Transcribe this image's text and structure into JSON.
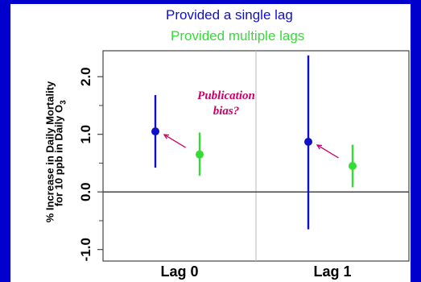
{
  "colors": {
    "background": "#0000CC",
    "panel": "#FFFFFF",
    "single_lag": "#1010C8",
    "multiple_lags": "#33DD33",
    "annotation": "#CC0066",
    "axis": "#444444",
    "divider": "#BBBBBB"
  },
  "legend": {
    "single_label": "Provided a single lag",
    "multiple_label": "Provided multiple lags"
  },
  "annotation": {
    "line1": "Publication",
    "line2": "bias?"
  },
  "chart_data": {
    "type": "scatter",
    "title": "",
    "xlabel": "",
    "ylabel_line1": "% Increase in Daily Mortality",
    "ylabel_line2": "for 10 ppb in Daily O",
    "ylabel_subscript": "3",
    "categories": [
      "Lag 0",
      "Lag 1"
    ],
    "ylim": [
      -1.2,
      2.45
    ],
    "yticks": [
      {
        "value": -1.0,
        "label": "-1.0"
      },
      {
        "value": 0.0,
        "label": "0.0"
      },
      {
        "value": 1.0,
        "label": "1.0"
      },
      {
        "value": 2.0,
        "label": "2.0"
      }
    ],
    "reference_line": 0,
    "grid": false,
    "series": [
      {
        "name": "Provided a single lag",
        "color": "#1010C8",
        "points": [
          {
            "category": "Lag 0",
            "estimate": 1.05,
            "lower": 0.42,
            "upper": 1.68
          },
          {
            "category": "Lag 1",
            "estimate": 0.87,
            "lower": -0.65,
            "upper": 2.37
          }
        ]
      },
      {
        "name": "Provided multiple lags",
        "color": "#33DD33",
        "points": [
          {
            "category": "Lag 0",
            "estimate": 0.65,
            "lower": 0.28,
            "upper": 1.03
          },
          {
            "category": "Lag 1",
            "estimate": 0.45,
            "lower": 0.08,
            "upper": 0.82
          }
        ]
      }
    ]
  }
}
